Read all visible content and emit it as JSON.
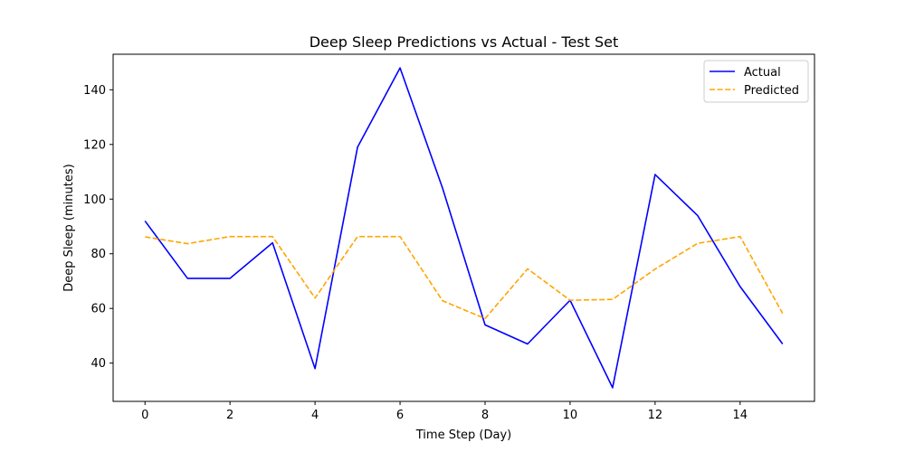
{
  "chart_data": {
    "type": "line",
    "title": "Deep Sleep Predictions vs Actual - Test Set",
    "xlabel": "Time Step (Day)",
    "ylabel": "Deep Sleep (minutes)",
    "x": [
      0,
      1,
      2,
      3,
      4,
      5,
      6,
      7,
      8,
      9,
      10,
      11,
      12,
      13,
      14,
      15
    ],
    "xlim": [
      -0.75,
      15.75
    ],
    "ylim": [
      26.0,
      153.0
    ],
    "xticks": [
      0,
      2,
      4,
      6,
      8,
      10,
      12,
      14
    ],
    "yticks": [
      40,
      60,
      80,
      100,
      120,
      140
    ],
    "grid": false,
    "legend_position": "upper-right",
    "series": [
      {
        "name": "Actual",
        "color": "#0000ff",
        "style": "solid",
        "values": [
          92,
          71,
          71,
          84,
          38,
          119,
          148,
          104,
          54,
          47,
          63,
          31,
          109,
          94,
          68,
          47
        ]
      },
      {
        "name": "Predicted",
        "color": "#ffa500",
        "style": "dashed",
        "values": [
          86.2,
          83.7,
          86.3,
          86.3,
          63.8,
          86.3,
          86.3,
          62.8,
          56.3,
          74.5,
          63,
          63.3,
          74.4,
          83.8,
          86.3,
          58.2
        ]
      }
    ]
  }
}
